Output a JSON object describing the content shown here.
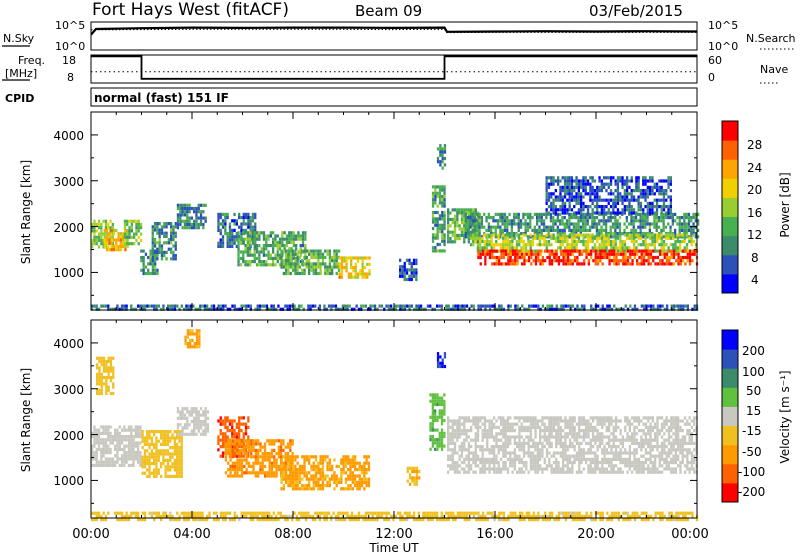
{
  "header": {
    "station": "Fort Hays West (fitACF)",
    "beam": "Beam 09",
    "date": "03/Feb/2015"
  },
  "noise_panel": {
    "left_label": "N.Sky",
    "left_ticks": [
      "10^5",
      "10^0"
    ],
    "right_label": "N.Search",
    "right_ticks": [
      "10^5",
      "10^0"
    ]
  },
  "freq_panel": {
    "left_label_1": "Freq.",
    "left_label_2": "[MHz]",
    "left_ticks": [
      "18",
      "8"
    ],
    "right_label": "Nave",
    "right_ticks": [
      "60",
      "0"
    ]
  },
  "cpid": {
    "label": "CPID",
    "text": "normal (fast) 151 IF"
  },
  "x_axis": {
    "ticks": [
      "00:00",
      "04:00",
      "08:00",
      "12:00",
      "16:00",
      "20:00",
      "00:00"
    ],
    "label": "Time UT"
  },
  "power_panel": {
    "ylabel": "Slant Range [km]",
    "yticks": [
      "4000",
      "3000",
      "2000",
      "1000"
    ],
    "colorbar_label": "Power [dB]",
    "colorbar_ticks": [
      "28",
      "24",
      "20",
      "16",
      "12",
      "8",
      "4"
    ]
  },
  "velocity_panel": {
    "ylabel": "Slant Range [km]",
    "yticks": [
      "4000",
      "3000",
      "2000",
      "1000"
    ],
    "colorbar_label": "Velocity [m s⁻¹]",
    "colorbar_ticks": [
      "200",
      "100",
      "50",
      "15",
      "-15",
      "-50",
      "-100",
      "-200"
    ]
  },
  "chart_data": [
    {
      "type": "line",
      "panel": "noise",
      "xlim": [
        0,
        24
      ],
      "series": [
        {
          "name": "N.Sky",
          "x": [
            0,
            0.2,
            2,
            4,
            6,
            8,
            10,
            12,
            14,
            14.1,
            16,
            18,
            20,
            22,
            24
          ],
          "y": [
            0.55,
            0.75,
            0.78,
            0.8,
            0.79,
            0.8,
            0.8,
            0.79,
            0.8,
            0.65,
            0.66,
            0.67,
            0.66,
            0.67,
            0.66
          ]
        },
        {
          "name": "N.Search",
          "x": [
            0,
            2,
            4,
            6,
            8,
            10,
            12,
            14,
            14.1,
            16,
            18,
            20,
            22,
            24
          ],
          "y": [
            0.72,
            0.73,
            0.74,
            0.74,
            0.74,
            0.74,
            0.73,
            0.74,
            0.62,
            0.63,
            0.63,
            0.63,
            0.63,
            0.63
          ]
        }
      ]
    },
    {
      "type": "line",
      "panel": "frequency",
      "xlim": [
        0,
        24
      ],
      "ylim": [
        8,
        18
      ],
      "series": [
        {
          "name": "Freq.",
          "x": [
            0,
            2.0,
            2.0,
            14.0,
            14.0,
            24
          ],
          "y": [
            17.5,
            17.5,
            9.5,
            9.5,
            17.5,
            17.5
          ]
        },
        {
          "name": "Nave",
          "x": [
            0,
            2,
            4,
            8,
            12,
            14,
            16,
            20,
            24
          ],
          "y": [
            12,
            12,
            12,
            12,
            12,
            12,
            12,
            12,
            12
          ]
        }
      ]
    },
    {
      "type": "heatmap",
      "panel": "power",
      "x_unit": "hours UT",
      "y_unit": "km",
      "xlim": [
        0,
        24
      ],
      "ylim": [
        180,
        4500
      ],
      "clim": [
        0,
        30
      ],
      "blobs": [
        {
          "x0": 0.0,
          "x1": 0.9,
          "y0": 1550,
          "y1": 2150,
          "p": 14
        },
        {
          "x0": 0.5,
          "x1": 1.5,
          "y0": 1500,
          "y1": 1950,
          "p": 20
        },
        {
          "x0": 1.3,
          "x1": 1.95,
          "y0": 1650,
          "y1": 2150,
          "p": 13
        },
        {
          "x0": 1.95,
          "x1": 2.6,
          "y0": 1000,
          "y1": 1500,
          "p": 9
        },
        {
          "x0": 2.4,
          "x1": 3.4,
          "y0": 1300,
          "y1": 2100,
          "p": 9
        },
        {
          "x0": 3.4,
          "x1": 4.5,
          "y0": 2000,
          "y1": 2500,
          "p": 8
        },
        {
          "x0": 5.0,
          "x1": 6.5,
          "y0": 1600,
          "y1": 2300,
          "p": 7
        },
        {
          "x0": 5.8,
          "x1": 8.5,
          "y0": 1200,
          "y1": 1900,
          "p": 11
        },
        {
          "x0": 7.5,
          "x1": 9.8,
          "y0": 1000,
          "y1": 1500,
          "p": 12
        },
        {
          "x0": 9.8,
          "x1": 11.0,
          "y0": 900,
          "y1": 1350,
          "p": 19
        },
        {
          "x0": 12.2,
          "x1": 12.9,
          "y0": 850,
          "y1": 1300,
          "p": 5
        },
        {
          "x0": 13.5,
          "x1": 14.0,
          "y0": 1500,
          "y1": 2900,
          "p": 10
        },
        {
          "x0": 13.7,
          "x1": 14.0,
          "y0": 3300,
          "y1": 3800,
          "p": 8
        },
        {
          "x0": 14.1,
          "x1": 15.3,
          "y0": 1700,
          "y1": 2400,
          "p": 12
        },
        {
          "x0": 14.8,
          "x1": 24.0,
          "y0": 1800,
          "y1": 2300,
          "p": 9
        },
        {
          "x0": 15.0,
          "x1": 24.0,
          "y0": 1500,
          "y1": 1850,
          "p": 15
        },
        {
          "x0": 15.3,
          "x1": 24.0,
          "y0": 1200,
          "y1": 1500,
          "p": 27
        },
        {
          "x0": 18.0,
          "x1": 23.0,
          "y0": 2300,
          "y1": 3100,
          "p": 5
        },
        {
          "x0": 0.0,
          "x1": 24.0,
          "y0": 180,
          "y1": 300,
          "p": 6
        }
      ]
    },
    {
      "type": "heatmap",
      "panel": "velocity",
      "x_unit": "hours UT",
      "y_unit": "km",
      "xlim": [
        0,
        24
      ],
      "ylim": [
        180,
        4500
      ],
      "clim": [
        -200,
        200
      ],
      "blobs": [
        {
          "x0": 0.0,
          "x1": 1.95,
          "y0": 1300,
          "y1": 2200,
          "v": 0
        },
        {
          "x0": 0.2,
          "x1": 0.9,
          "y0": 2900,
          "y1": 3700,
          "v": -30
        },
        {
          "x0": 2.0,
          "x1": 3.6,
          "y0": 1100,
          "y1": 2100,
          "v": -25
        },
        {
          "x0": 3.4,
          "x1": 4.6,
          "y0": 2000,
          "y1": 2600,
          "v": 0
        },
        {
          "x0": 3.7,
          "x1": 4.3,
          "y0": 3900,
          "y1": 4300,
          "v": -60
        },
        {
          "x0": 5.0,
          "x1": 6.2,
          "y0": 1500,
          "y1": 2400,
          "v": -170
        },
        {
          "x0": 5.3,
          "x1": 8.0,
          "y0": 1100,
          "y1": 1900,
          "v": -85
        },
        {
          "x0": 7.5,
          "x1": 11.0,
          "y0": 850,
          "y1": 1550,
          "v": -60
        },
        {
          "x0": 12.5,
          "x1": 13.0,
          "y0": 900,
          "y1": 1300,
          "v": -45
        },
        {
          "x0": 13.4,
          "x1": 14.0,
          "y0": 1700,
          "y1": 2900,
          "v": 40
        },
        {
          "x0": 13.7,
          "x1": 14.0,
          "y0": 3500,
          "y1": 3800,
          "v": 180
        },
        {
          "x0": 14.1,
          "x1": 24.0,
          "y0": 1200,
          "y1": 2400,
          "v": 0
        },
        {
          "x0": 0.0,
          "x1": 24.0,
          "y0": 180,
          "y1": 320,
          "v": -20
        }
      ]
    }
  ],
  "colors": {
    "power_scale": [
      "#0000ff",
      "#2a52b8",
      "#3c8c6c",
      "#48b050",
      "#9acd32",
      "#f0d000",
      "#ffa500",
      "#ff6000",
      "#ff0000"
    ],
    "velocity_scale": [
      "#ff0000",
      "#ff6000",
      "#ff9a00",
      "#f0c020",
      "#c8c8c0",
      "#60c040",
      "#3c8c6c",
      "#2a52b8",
      "#0000ff"
    ],
    "ground_scatter": "#c8c8c0"
  }
}
